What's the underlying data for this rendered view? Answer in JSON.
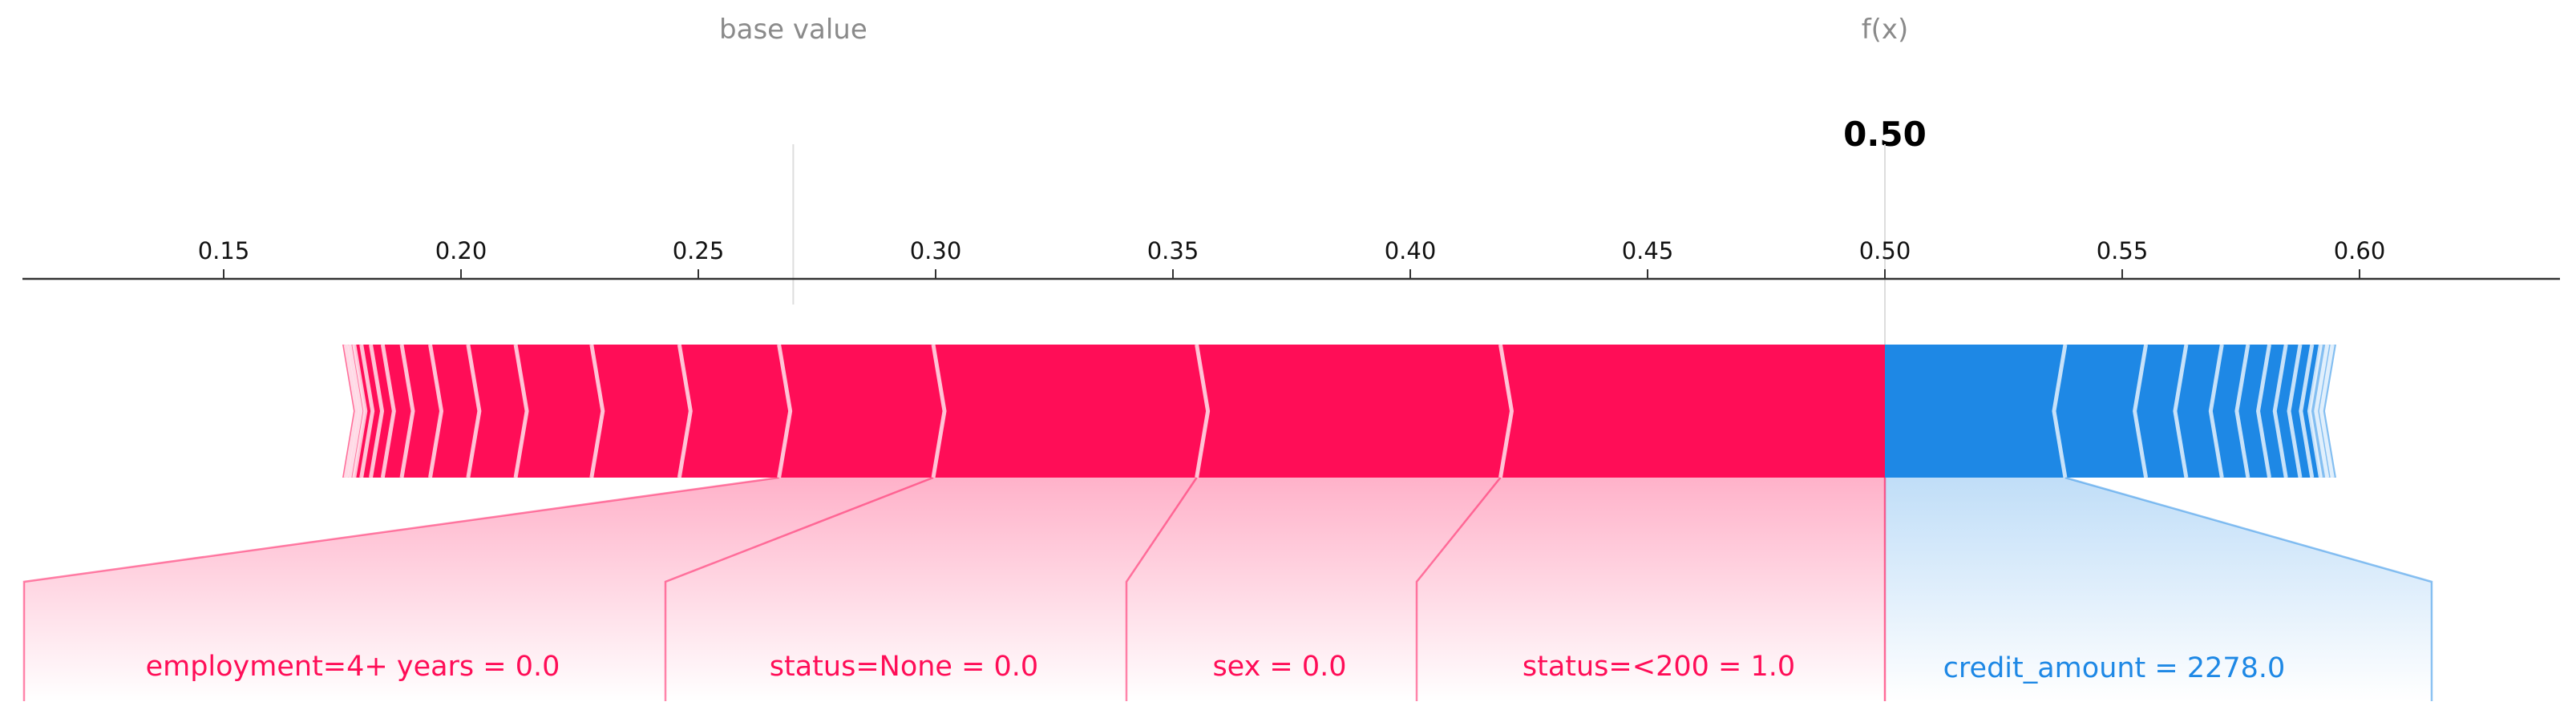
{
  "chart_data": {
    "type": "force",
    "base_value_label": "base value",
    "output_label": "f(x)",
    "base_value": 0.27,
    "output_value": 0.5,
    "output_value_text": "0.50",
    "xlim": [
      0.108,
      0.643
    ],
    "ticks": [
      0.15,
      0.2,
      0.25,
      0.3,
      0.35,
      0.4,
      0.45,
      0.5,
      0.55,
      0.6
    ],
    "tick_labels": [
      "0.15",
      "0.20",
      "0.25",
      "0.30",
      "0.35",
      "0.40",
      "0.45",
      "0.50",
      "0.55",
      "0.60"
    ],
    "colors": {
      "positive": "#ff0d57",
      "negative": "#1e88e5",
      "positive_light": "#ffc3d5",
      "negative_light": "#d1e6fa"
    },
    "positive_boundaries": [
      0.5,
      0.419,
      0.355,
      0.2995,
      0.267,
      0.246,
      0.2275,
      0.2115,
      0.2015,
      0.1935,
      0.1875,
      0.1835,
      0.181,
      0.179,
      0.1775,
      0.1765,
      0.1757,
      0.175
    ],
    "negative_boundaries": [
      0.5,
      0.538,
      0.555,
      0.5635,
      0.571,
      0.5765,
      0.581,
      0.5845,
      0.5875,
      0.59,
      0.5918,
      0.5932,
      0.5943,
      0.5951
    ],
    "labeled_features": [
      {
        "label": "employment=4+ years = 0.0",
        "effect": "positive",
        "start": 0.267,
        "end": 0.2995
      },
      {
        "label": "status=None = 0.0",
        "effect": "positive",
        "start": 0.2995,
        "end": 0.355
      },
      {
        "label": "sex = 0.0",
        "effect": "positive",
        "start": 0.355,
        "end": 0.419
      },
      {
        "label": "status=<200 = 1.0",
        "effect": "positive",
        "start": 0.419,
        "end": 0.5
      },
      {
        "label": "credit_amount = 2278.0",
        "effect": "negative",
        "start": 0.5,
        "end": 0.538
      }
    ]
  }
}
